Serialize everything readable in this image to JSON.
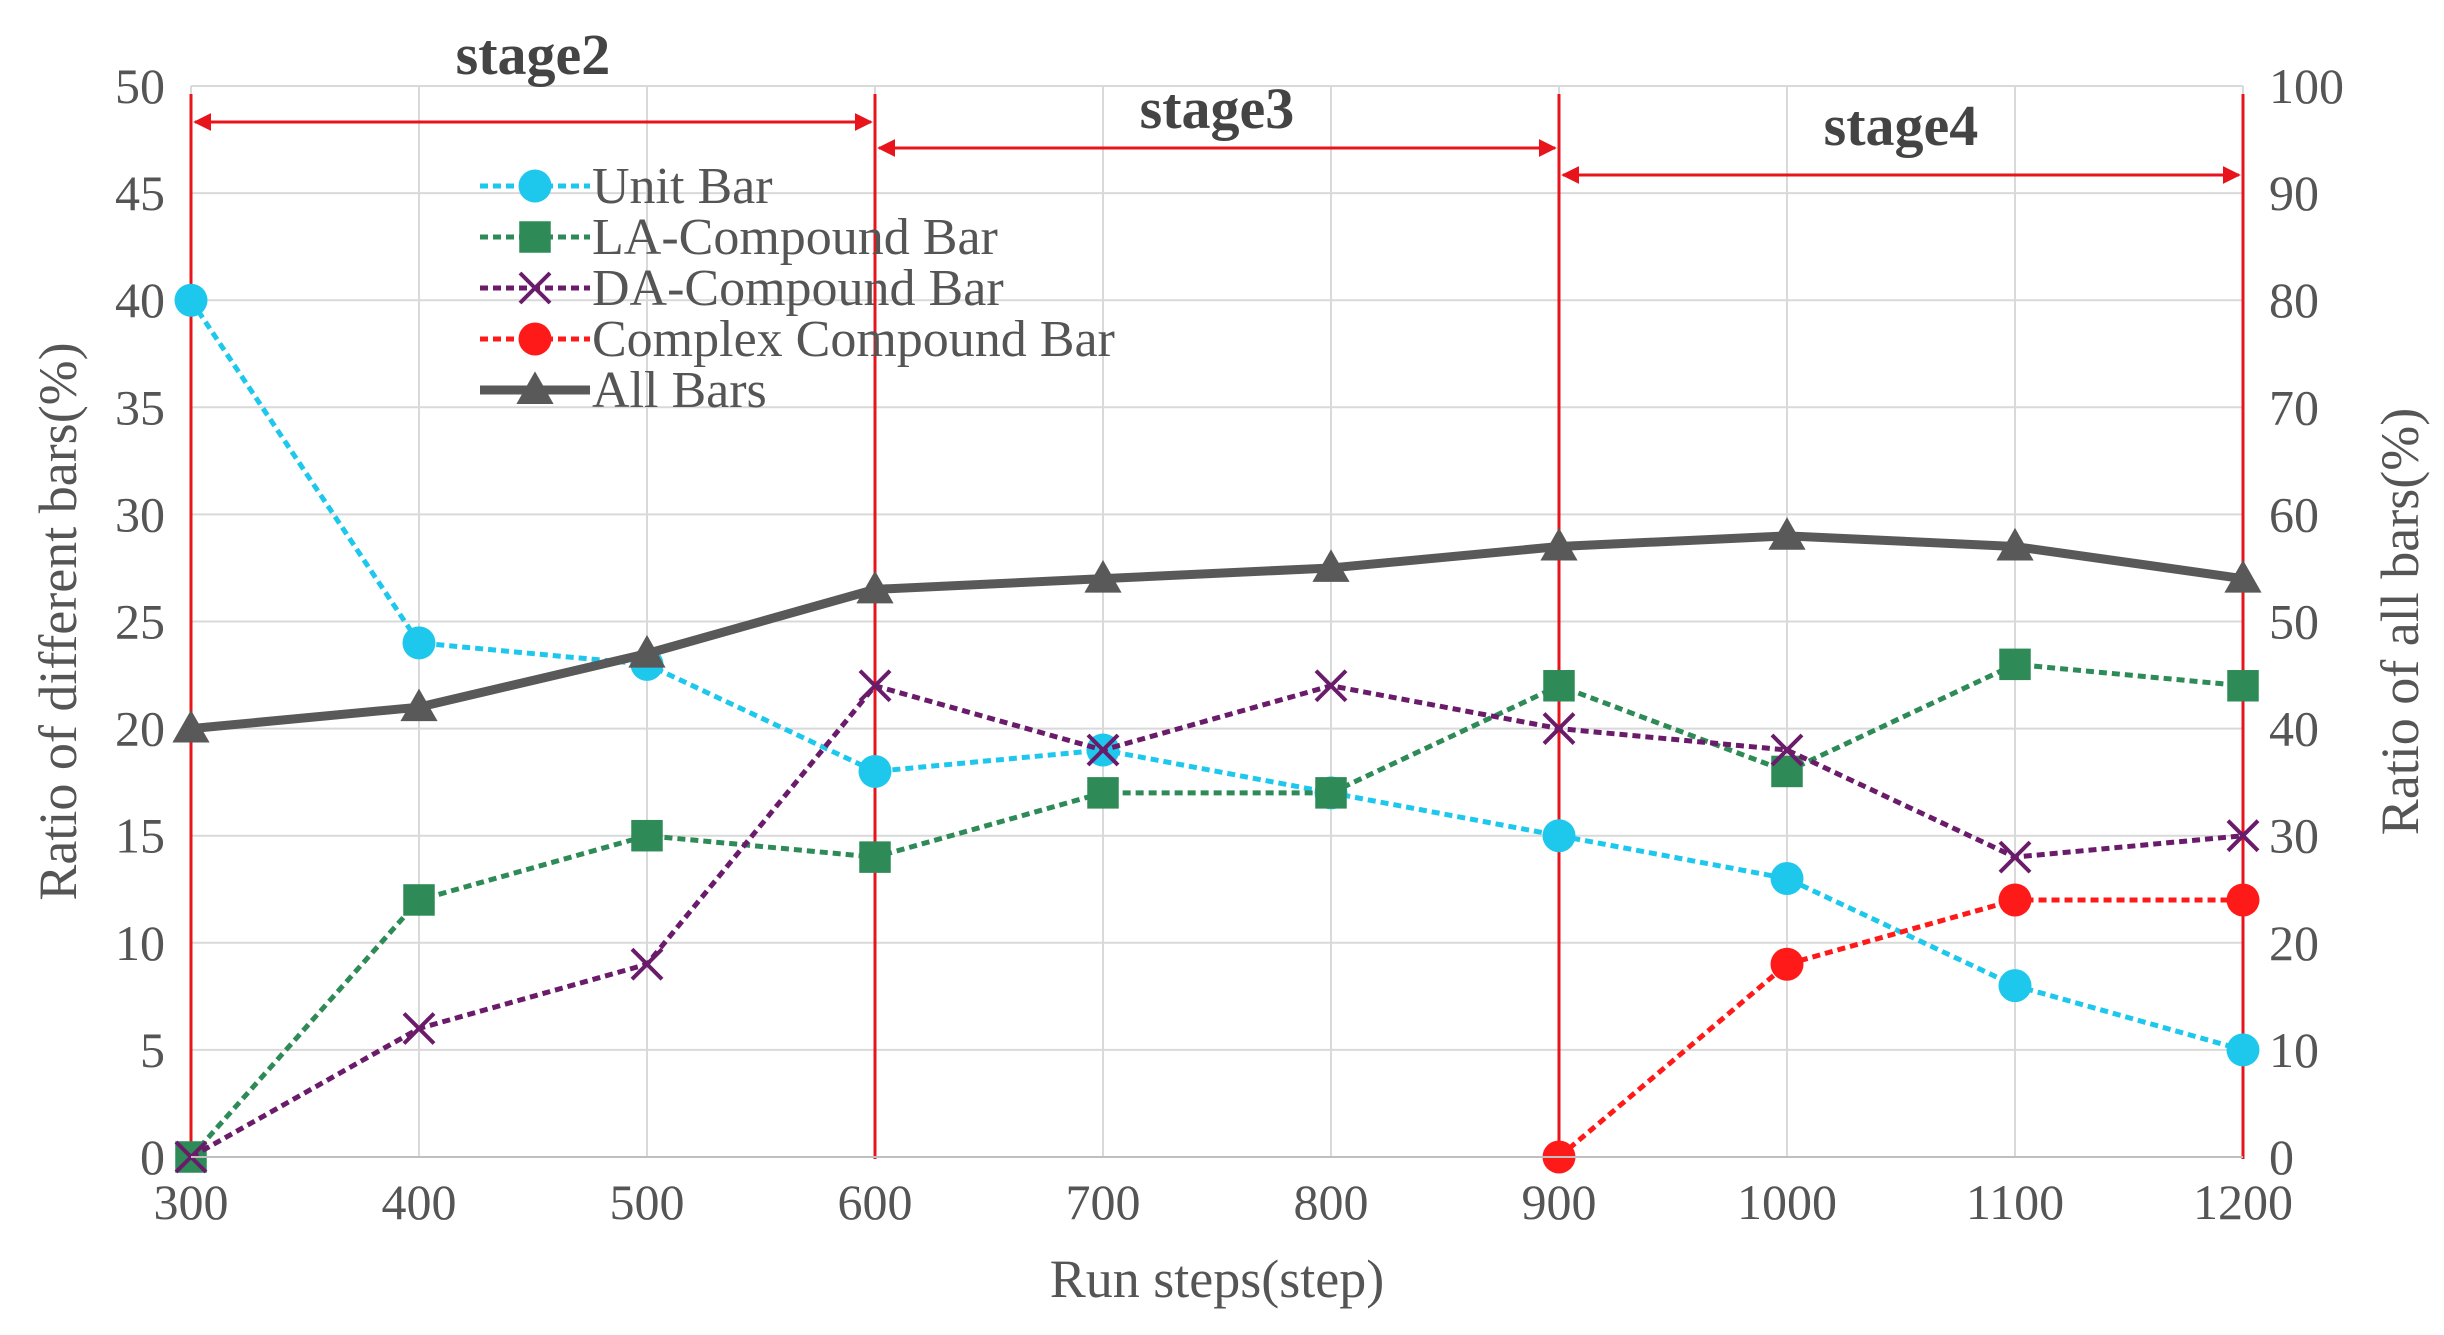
{
  "chart_data": {
    "type": "line",
    "title": "",
    "xlabel": "Run steps(step)",
    "ylabel_left": "Ratio of different bars(%)",
    "ylabel_right": "Ratio of all bars(%)",
    "x": [
      300,
      400,
      500,
      600,
      700,
      800,
      900,
      1000,
      1100,
      1200
    ],
    "x_tick_labels": [
      "300",
      "400",
      "500",
      "600",
      "700",
      "800",
      "900",
      "1000",
      "1100",
      "1200"
    ],
    "ylim_left": [
      0,
      50
    ],
    "ylim_right": [
      0,
      100
    ],
    "y_left_ticks": [
      "0",
      "5",
      "10",
      "15",
      "20",
      "25",
      "30",
      "35",
      "40",
      "45",
      "50"
    ],
    "y_right_ticks": [
      "0",
      "10",
      "20",
      "30",
      "40",
      "50",
      "60",
      "70",
      "80",
      "90",
      "100"
    ],
    "grid": true,
    "legend_position": "top-left",
    "series": [
      {
        "name": "Unit Bar",
        "axis": "left",
        "color": "#1ec8ec",
        "marker": "circle",
        "dashed": true,
        "x": [
          300,
          400,
          500,
          600,
          700,
          800,
          900,
          1000,
          1100,
          1200
        ],
        "values": [
          40,
          24,
          23,
          18,
          19,
          17,
          15,
          13,
          8,
          5
        ]
      },
      {
        "name": "LA-Compound Bar",
        "axis": "left",
        "color": "#2e8b57",
        "marker": "square",
        "dashed": true,
        "x": [
          300,
          400,
          500,
          600,
          700,
          800,
          900,
          1000,
          1100,
          1200
        ],
        "values": [
          0,
          12,
          15,
          14,
          17,
          17,
          22,
          18,
          23,
          22
        ]
      },
      {
        "name": "DA-Compound Bar",
        "axis": "left",
        "color": "#6a1b6a",
        "marker": "x",
        "dashed": true,
        "x": [
          300,
          400,
          500,
          600,
          700,
          800,
          900,
          1000,
          1100,
          1200
        ],
        "values": [
          0,
          6,
          9,
          22,
          19,
          22,
          20,
          19,
          14,
          15
        ]
      },
      {
        "name": "Complex Compound Bar",
        "axis": "left",
        "color": "#ff1a1a",
        "marker": "circle",
        "dashed": true,
        "x": [
          900,
          1000,
          1100,
          1200
        ],
        "values": [
          0,
          9,
          12,
          12
        ]
      },
      {
        "name": "All  Bars",
        "axis": "right",
        "color": "#595959",
        "marker": "triangle",
        "dashed": false,
        "x": [
          300,
          400,
          500,
          600,
          700,
          800,
          900,
          1000,
          1100,
          1200
        ],
        "values": [
          40,
          42,
          47,
          53,
          54,
          55,
          57,
          58,
          57,
          54
        ]
      }
    ],
    "stages": [
      {
        "label": "stage2",
        "from": 300,
        "to": 600
      },
      {
        "label": "stage3",
        "from": 600,
        "to": 900
      },
      {
        "label": "stage4",
        "from": 900,
        "to": 1200
      }
    ],
    "stage_boundaries": [
      300,
      600,
      900,
      1200
    ],
    "stage_color": "#e8141b"
  }
}
